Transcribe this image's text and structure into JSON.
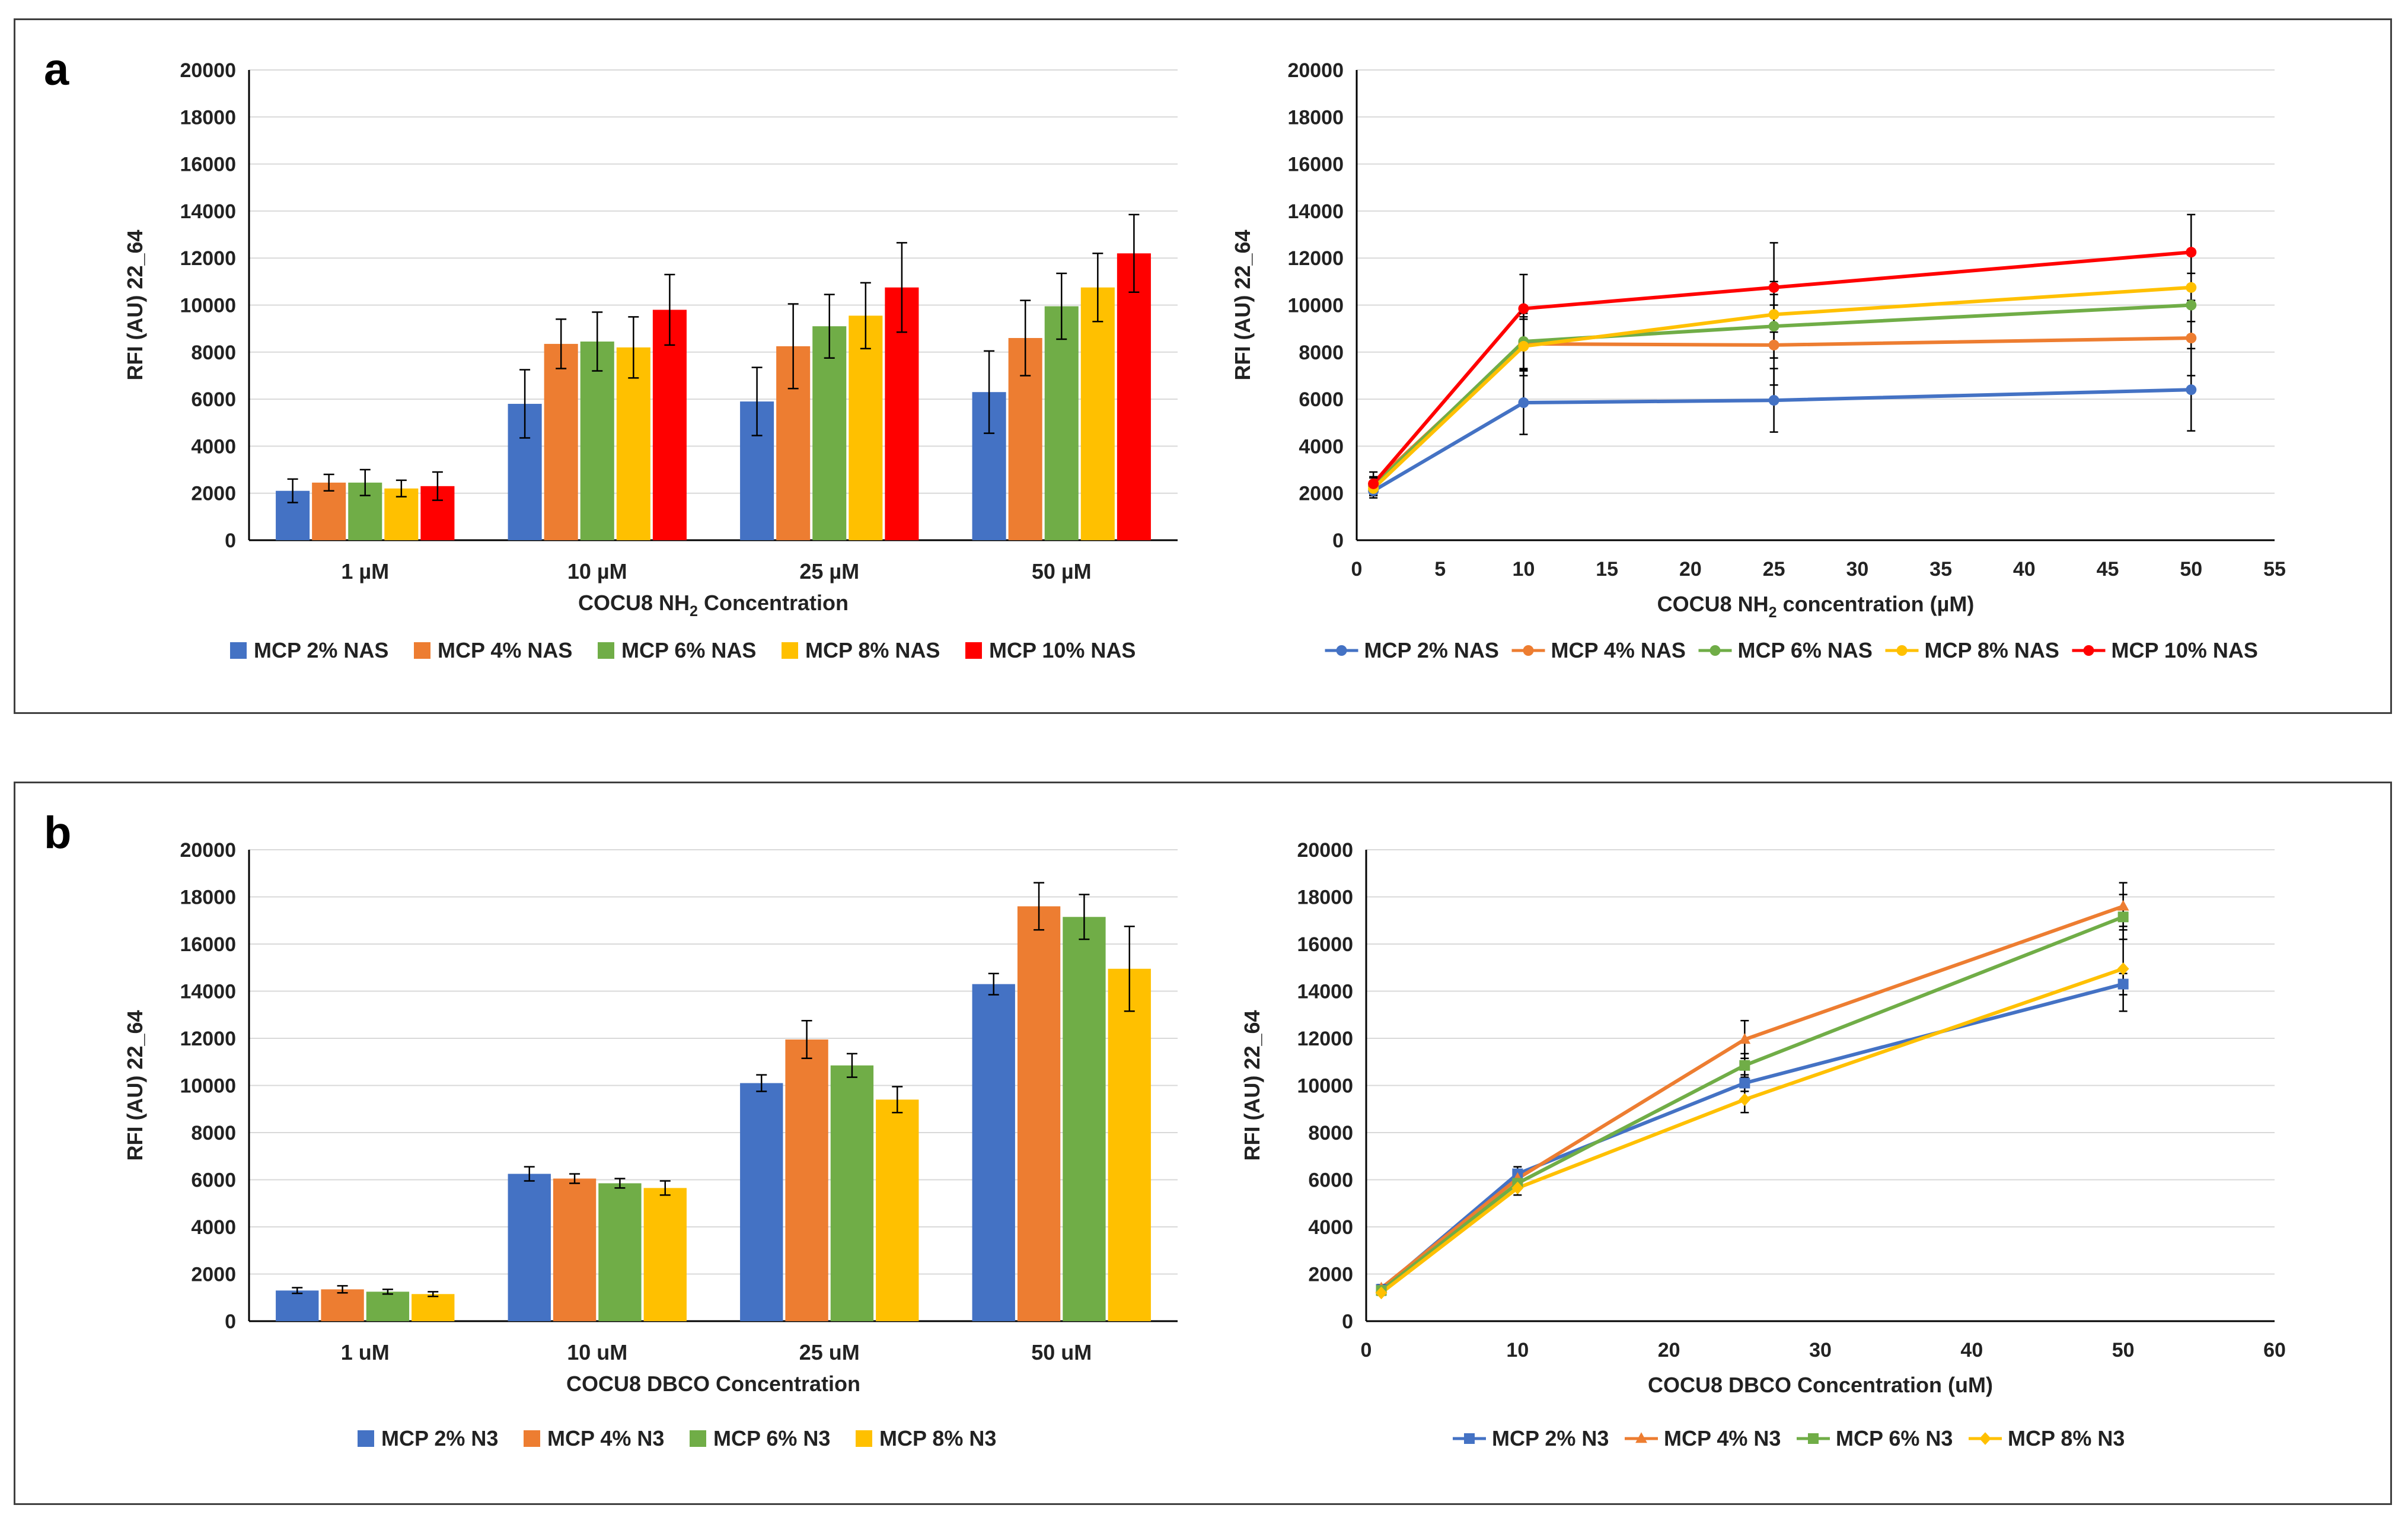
{
  "panels": [
    {
      "label": "a",
      "charts": [
        {
          "type": "bar",
          "ylabel": "RFI (AU) 22_64",
          "xlabel_main": "COCU8 NH",
          "xlabel_sub": "2",
          "xlabel_tail": " Concentration",
          "ylim": [
            0,
            20000
          ],
          "yticks": [
            0,
            2000,
            4000,
            6000,
            8000,
            10000,
            12000,
            14000,
            16000,
            18000,
            20000
          ],
          "categories": [
            "1 µM",
            "10 µM",
            "25 µM",
            "50 µM"
          ],
          "series": [
            {
              "name": "MCP 2% NAS",
              "color": "#4472C4",
              "values": [
                2100,
                5800,
                5900,
                6300
              ],
              "errors": [
                500,
                1450,
                1450,
                1750
              ]
            },
            {
              "name": "MCP 4% NAS",
              "color": "#ED7D31",
              "values": [
                2450,
                8350,
                8250,
                8600
              ],
              "errors": [
                350,
                1050,
                1800,
                1600
              ]
            },
            {
              "name": "MCP 6% NAS",
              "color": "#70AD47",
              "values": [
                2450,
                8450,
                9100,
                9950
              ],
              "errors": [
                550,
                1250,
                1350,
                1400
              ]
            },
            {
              "name": "MCP 8% NAS",
              "color": "#FFC000",
              "values": [
                2200,
                8200,
                9550,
                10750
              ],
              "errors": [
                350,
                1300,
                1400,
                1450
              ]
            },
            {
              "name": "MCP 10% NAS",
              "color": "#FF0000",
              "values": [
                2300,
                9800,
                10750,
                12200
              ],
              "errors": [
                600,
                1500,
                1900,
                1650
              ]
            }
          ]
        },
        {
          "type": "line",
          "ylabel": "RFI (AU) 22_64",
          "xlabel_main": "COCU8 NH",
          "xlabel_sub": "2",
          "xlabel_tail": " concentration (µM)",
          "ylim": [
            0,
            20000
          ],
          "xlim": [
            0,
            55
          ],
          "yticks": [
            0,
            2000,
            4000,
            6000,
            8000,
            10000,
            12000,
            14000,
            16000,
            18000,
            20000
          ],
          "xticks": [
            0,
            5,
            10,
            15,
            20,
            25,
            30,
            35,
            40,
            45,
            50,
            55
          ],
          "marker": "circle",
          "x": [
            1,
            10,
            25,
            50
          ],
          "series": [
            {
              "name": "MCP 2% NAS",
              "color": "#4472C4",
              "values": [
                2100,
                5850,
                5950,
                6400
              ],
              "errors": [
                300,
                1350,
                1350,
                1750
              ]
            },
            {
              "name": "MCP 4% NAS",
              "color": "#ED7D31",
              "values": [
                2400,
                8350,
                8300,
                8600
              ],
              "errors": [
                300,
                1050,
                1700,
                1600
              ]
            },
            {
              "name": "MCP 6% NAS",
              "color": "#70AD47",
              "values": [
                2300,
                8450,
                9100,
                10000
              ],
              "errors": [
                350,
                1200,
                1350,
                1350
              ]
            },
            {
              "name": "MCP 8% NAS",
              "color": "#FFC000",
              "values": [
                2200,
                8250,
                9600,
                10750
              ],
              "errors": [
                300,
                1250,
                1400,
                1450
              ]
            },
            {
              "name": "MCP 10% NAS",
              "color": "#FF0000",
              "values": [
                2400,
                9850,
                10750,
                12250
              ],
              "errors": [
                500,
                1450,
                1900,
                1600
              ]
            }
          ]
        }
      ]
    },
    {
      "label": "b",
      "charts": [
        {
          "type": "bar",
          "ylabel": "RFI (AU) 22_64",
          "xlabel_main": "COCU8 DBCO Concentration",
          "xlabel_sub": "",
          "xlabel_tail": "",
          "ylim": [
            0,
            20000
          ],
          "yticks": [
            0,
            2000,
            4000,
            6000,
            8000,
            10000,
            12000,
            14000,
            16000,
            18000,
            20000
          ],
          "categories": [
            "1 uM",
            "10 uM",
            "25 uM",
            "50 uM"
          ],
          "series": [
            {
              "name": "MCP 2% N3",
              "color": "#4472C4",
              "values": [
                1300,
                6250,
                10100,
                14300
              ],
              "errors": [
                120,
                300,
                350,
                450
              ]
            },
            {
              "name": "MCP 4% N3",
              "color": "#ED7D31",
              "values": [
                1350,
                6050,
                11950,
                17600
              ],
              "errors": [
                150,
                200,
                800,
                1000
              ]
            },
            {
              "name": "MCP 6% N3",
              "color": "#70AD47",
              "values": [
                1250,
                5850,
                10850,
                17150
              ],
              "errors": [
                100,
                200,
                500,
                950
              ]
            },
            {
              "name": "MCP 8% N3",
              "color": "#FFC000",
              "values": [
                1150,
                5650,
                9400,
                14950
              ],
              "errors": [
                100,
                300,
                550,
                1800
              ]
            }
          ]
        },
        {
          "type": "line",
          "ylabel": "RFI (AU) 22_64",
          "xlabel_main": "COCU8 DBCO Concentration (uM)",
          "xlabel_sub": "",
          "xlabel_tail": "",
          "ylim": [
            0,
            20000
          ],
          "xlim": [
            0,
            60
          ],
          "yticks": [
            0,
            2000,
            4000,
            6000,
            8000,
            10000,
            12000,
            14000,
            16000,
            18000,
            20000
          ],
          "xticks": [
            0,
            10,
            20,
            30,
            40,
            50,
            60
          ],
          "marker": "mixed",
          "x": [
            1,
            10,
            25,
            50
          ],
          "series": [
            {
              "name": "MCP 2% N3",
              "color": "#4472C4",
              "marker": "square",
              "values": [
                1350,
                6250,
                10100,
                14300
              ],
              "errors": [
                120,
                300,
                350,
                450
              ]
            },
            {
              "name": "MCP 4% N3",
              "color": "#ED7D31",
              "marker": "triangle",
              "values": [
                1400,
                6050,
                11950,
                17600
              ],
              "errors": [
                150,
                200,
                800,
                1000
              ]
            },
            {
              "name": "MCP 6% N3",
              "color": "#70AD47",
              "marker": "square",
              "values": [
                1300,
                5850,
                10850,
                17150
              ],
              "errors": [
                100,
                200,
                500,
                950
              ]
            },
            {
              "name": "MCP 8% N3",
              "color": "#FFC000",
              "marker": "diamond",
              "values": [
                1200,
                5650,
                9400,
                14950
              ],
              "errors": [
                100,
                300,
                550,
                1800
              ]
            }
          ]
        }
      ]
    }
  ],
  "chart_data": [
    {
      "type": "bar",
      "panel": "a",
      "categories": [
        "1 µM",
        "10 µM",
        "25 µM",
        "50 µM"
      ],
      "ylabel": "RFI (AU) 22_64",
      "xlabel": "COCU8 NH2 Concentration",
      "ylim": [
        0,
        20000
      ],
      "series": [
        {
          "name": "MCP 2% NAS",
          "values": [
            2100,
            5800,
            5900,
            6300
          ]
        },
        {
          "name": "MCP 4% NAS",
          "values": [
            2450,
            8350,
            8250,
            8600
          ]
        },
        {
          "name": "MCP 6% NAS",
          "values": [
            2450,
            8450,
            9100,
            9950
          ]
        },
        {
          "name": "MCP 8% NAS",
          "values": [
            2200,
            8200,
            9550,
            10750
          ]
        },
        {
          "name": "MCP 10% NAS",
          "values": [
            2300,
            9800,
            10750,
            12200
          ]
        }
      ]
    },
    {
      "type": "line",
      "panel": "a",
      "x": [
        1,
        10,
        25,
        50
      ],
      "ylabel": "RFI (AU) 22_64",
      "xlabel": "COCU8 NH2 concentration (µM)",
      "xlim": [
        0,
        55
      ],
      "ylim": [
        0,
        20000
      ],
      "series": [
        {
          "name": "MCP 2% NAS",
          "values": [
            2100,
            5850,
            5950,
            6400
          ]
        },
        {
          "name": "MCP 4% NAS",
          "values": [
            2400,
            8350,
            8300,
            8600
          ]
        },
        {
          "name": "MCP 6% NAS",
          "values": [
            2300,
            8450,
            9100,
            10000
          ]
        },
        {
          "name": "MCP 8% NAS",
          "values": [
            2200,
            8250,
            9600,
            10750
          ]
        },
        {
          "name": "MCP 10% NAS",
          "values": [
            2400,
            9850,
            10750,
            12250
          ]
        }
      ]
    },
    {
      "type": "bar",
      "panel": "b",
      "categories": [
        "1 uM",
        "10 uM",
        "25 uM",
        "50 uM"
      ],
      "ylabel": "RFI (AU) 22_64",
      "xlabel": "COCU8 DBCO Concentration",
      "ylim": [
        0,
        20000
      ],
      "series": [
        {
          "name": "MCP 2% N3",
          "values": [
            1300,
            6250,
            10100,
            14300
          ]
        },
        {
          "name": "MCP 4% N3",
          "values": [
            1350,
            6050,
            11950,
            17600
          ]
        },
        {
          "name": "MCP 6% N3",
          "values": [
            1250,
            5850,
            10850,
            17150
          ]
        },
        {
          "name": "MCP 8% N3",
          "values": [
            1150,
            5650,
            9400,
            14950
          ]
        }
      ]
    },
    {
      "type": "line",
      "panel": "b",
      "x": [
        1,
        10,
        25,
        50
      ],
      "ylabel": "RFI (AU) 22_64",
      "xlabel": "COCU8 DBCO Concentration (uM)",
      "xlim": [
        0,
        60
      ],
      "ylim": [
        0,
        20000
      ],
      "series": [
        {
          "name": "MCP 2% N3",
          "values": [
            1350,
            6250,
            10100,
            14300
          ]
        },
        {
          "name": "MCP 4% N3",
          "values": [
            1400,
            6050,
            11950,
            17600
          ]
        },
        {
          "name": "MCP 6% N3",
          "values": [
            1300,
            5850,
            10850,
            17150
          ]
        },
        {
          "name": "MCP 8% N3",
          "values": [
            1200,
            5650,
            9400,
            14950
          ]
        }
      ]
    }
  ]
}
